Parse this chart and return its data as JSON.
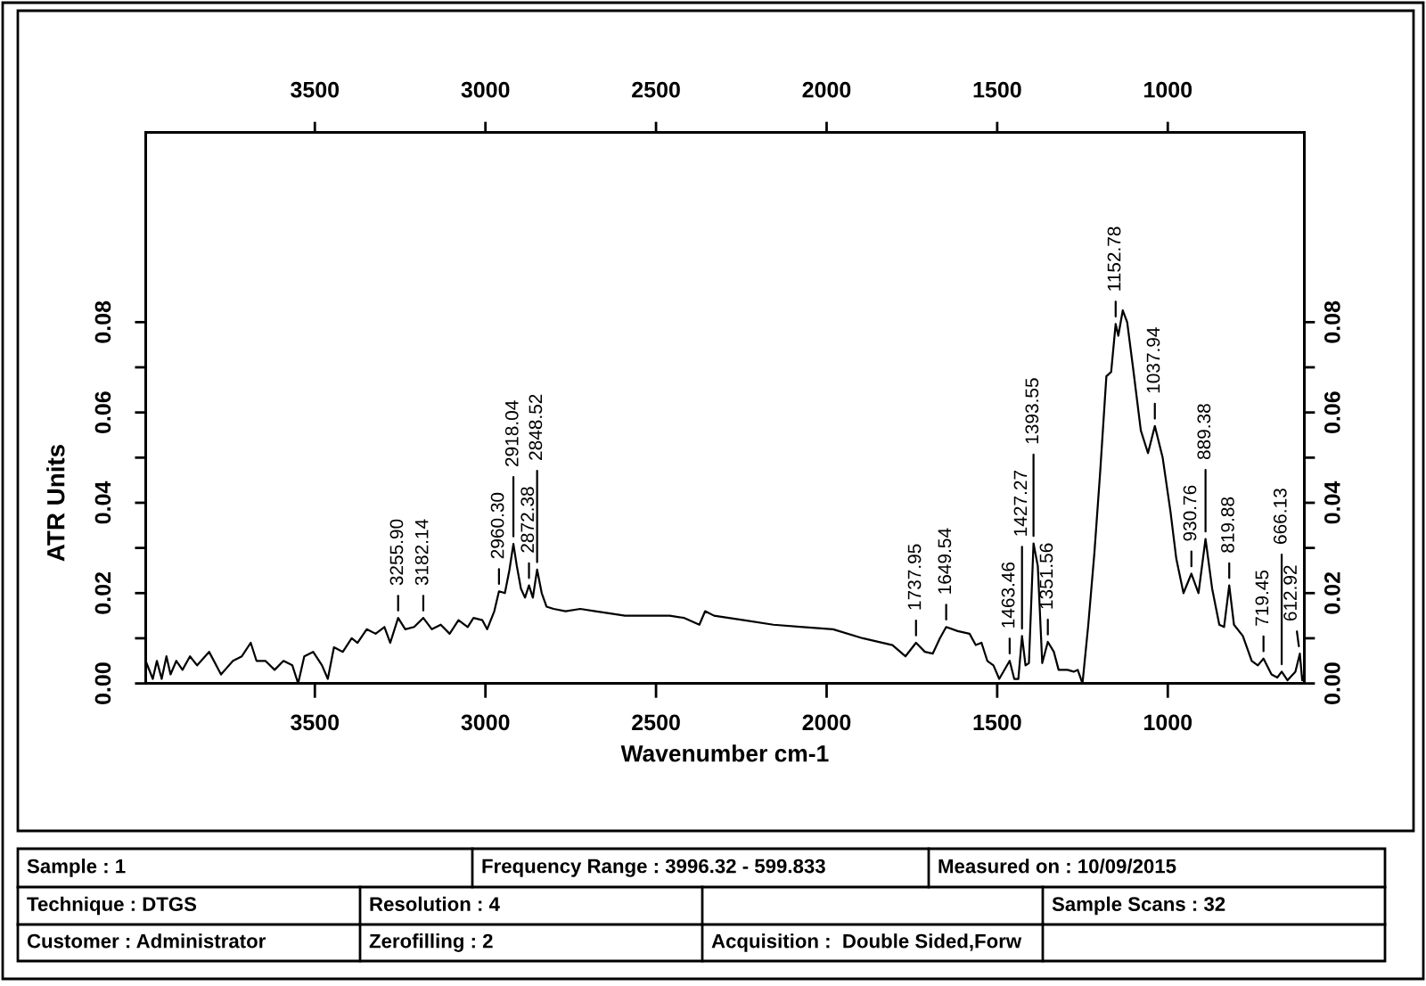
{
  "chart_data": {
    "type": "line",
    "xlabel": "Wavenumber cm-1",
    "ylabel": "ATR Units",
    "xlim": [
      3996,
      600
    ],
    "xticks": [
      3500,
      3000,
      2500,
      2000,
      1500,
      1000
    ],
    "x2lim": [
      3996,
      600
    ],
    "x2ticks": [
      3500,
      3000,
      2500,
      2000,
      1500,
      1000
    ],
    "ylim": [
      0,
      0.122
    ],
    "yticks": [
      {
        "value": 0,
        "label": "0.00"
      },
      {
        "value": 0.01,
        "label": null
      },
      0.02,
      {
        "value": 0.03,
        "label": null
      },
      0.04,
      {
        "value": 0.05,
        "label": null
      },
      0.06,
      {
        "value": 0.07,
        "label": null
      },
      0.08
    ],
    "y2lim": [
      0,
      0.122
    ],
    "y2ticks": [
      {
        "value": 0,
        "label": "0.00"
      },
      {
        "value": 0.01,
        "label": null
      },
      0.02,
      {
        "value": 0.03,
        "label": null
      },
      0.04,
      {
        "value": 0.05,
        "label": null
      },
      0.06,
      {
        "value": 0.07,
        "label": null
      },
      0.08
    ],
    "series": [
      {
        "color": "#000000",
        "x": [
          3996,
          3975,
          3963,
          3949,
          3935,
          3923,
          3906,
          3888,
          3866,
          3845,
          3810,
          3775,
          3740,
          3714,
          3688,
          3671,
          3645,
          3618,
          3592,
          3566,
          3549,
          3531,
          3505,
          3479,
          3462,
          3444,
          3418,
          3392,
          3375,
          3348,
          3322,
          3296,
          3279,
          3255.9,
          3235,
          3209,
          3182.14,
          3157,
          3131,
          3105,
          3079,
          3052,
          3035,
          3009,
          2995,
          2974,
          2960.3,
          2943,
          2930,
          2918.04,
          2908,
          2896,
          2884,
          2872.38,
          2861,
          2848.52,
          2835,
          2821,
          2800,
          2765,
          2722,
          2678,
          2634,
          2591,
          2547,
          2504,
          2460,
          2417,
          2373,
          2356,
          2330,
          2243,
          2156,
          2069,
          1981,
          1894,
          1807,
          1769,
          1737.95,
          1712,
          1689,
          1668,
          1649.54,
          1616,
          1581,
          1563,
          1546,
          1529,
          1511,
          1494,
          1463.46,
          1450,
          1438,
          1427.27,
          1417,
          1407,
          1393.55,
          1381,
          1368,
          1351.56,
          1334,
          1320,
          1294,
          1276,
          1264,
          1250,
          1233,
          1215,
          1198,
          1180,
          1166,
          1152.78,
          1145,
          1132,
          1119,
          1102,
          1079,
          1058,
          1037.94,
          1015,
          992,
          975,
          954,
          930.76,
          910,
          889.38,
          870,
          849,
          835,
          819.88,
          806,
          780,
          754,
          736,
          719.45,
          696,
          679,
          666.13,
          649,
          626,
          612.92,
          606,
          600
        ],
        "values": [
          0.005,
          0.001,
          0.005,
          0.001,
          0.006,
          0.002,
          0.005,
          0.003,
          0.006,
          0.004,
          0.007,
          0.002,
          0.005,
          0.006,
          0.009,
          0.005,
          0.005,
          0.003,
          0.005,
          0.004,
          0.0,
          0.006,
          0.007,
          0.004,
          0.001,
          0.008,
          0.007,
          0.01,
          0.009,
          0.012,
          0.011,
          0.0125,
          0.009,
          0.0145,
          0.012,
          0.0125,
          0.0145,
          0.012,
          0.013,
          0.011,
          0.014,
          0.0125,
          0.0145,
          0.014,
          0.012,
          0.016,
          0.0204,
          0.02,
          0.025,
          0.0309,
          0.026,
          0.021,
          0.019,
          0.0217,
          0.019,
          0.0252,
          0.02,
          0.017,
          0.0165,
          0.016,
          0.0165,
          0.016,
          0.0155,
          0.015,
          0.015,
          0.015,
          0.015,
          0.0145,
          0.013,
          0.016,
          0.015,
          0.014,
          0.013,
          0.0125,
          0.012,
          0.01,
          0.0085,
          0.006,
          0.009,
          0.007,
          0.0066,
          0.01,
          0.0125,
          0.0116,
          0.011,
          0.0085,
          0.009,
          0.005,
          0.004,
          0.001,
          0.005,
          0.001,
          0.001,
          0.0105,
          0.004,
          0.0045,
          0.031,
          0.026,
          0.0045,
          0.0092,
          0.007,
          0.003,
          0.003,
          0.0026,
          0.003,
          0.0,
          0.013,
          0.029,
          0.047,
          0.068,
          0.069,
          0.0796,
          0.077,
          0.0826,
          0.08,
          0.07,
          0.056,
          0.051,
          0.057,
          0.05,
          0.038,
          0.0276,
          0.02,
          0.0243,
          0.02,
          0.032,
          0.021,
          0.013,
          0.0125,
          0.0217,
          0.013,
          0.0105,
          0.005,
          0.004,
          0.0055,
          0.002,
          0.0013,
          0.0026,
          0.0007,
          0.0026,
          0.0066,
          0.0007,
          0.002
        ]
      }
    ],
    "annotations": [
      {
        "text": "3255.90",
        "x": 3255.9,
        "y": 0.0145
      },
      {
        "text": "3182.14",
        "x": 3182.14,
        "y": 0.0145
      },
      {
        "text": "2960.30",
        "x": 2960.3,
        "y": 0.0204
      },
      {
        "text": "2918.04",
        "x": 2918.04,
        "y": 0.0309
      },
      {
        "text": "2872.38",
        "x": 2872.38,
        "y": 0.0217
      },
      {
        "text": "2848.52",
        "x": 2848.52,
        "y": 0.0252
      },
      {
        "text": "1737.95",
        "x": 1737.95,
        "y": 0.009
      },
      {
        "text": "1649.54",
        "x": 1649.54,
        "y": 0.0125
      },
      {
        "text": "1463.46",
        "x": 1463.46,
        "y": 0.005
      },
      {
        "text": "1427.27",
        "x": 1427.27,
        "y": 0.0105
      },
      {
        "text": "1393.55",
        "x": 1393.55,
        "y": 0.031
      },
      {
        "text": "1351.56",
        "x": 1351.56,
        "y": 0.0092
      },
      {
        "text": "1152.78",
        "x": 1152.78,
        "y": 0.0796
      },
      {
        "text": "1037.94",
        "x": 1037.94,
        "y": 0.057
      },
      {
        "text": "930.76",
        "x": 930.76,
        "y": 0.0243
      },
      {
        "text": "889.38",
        "x": 889.38,
        "y": 0.032
      },
      {
        "text": "819.88",
        "x": 819.88,
        "y": 0.0217
      },
      {
        "text": "719.45",
        "x": 719.45,
        "y": 0.0055
      },
      {
        "text": "666.13",
        "x": 666.13,
        "y": 0.0026
      },
      {
        "text": "612.92",
        "x": 612.92,
        "y": 0.0066
      },
      "Sample : 1",
      "Frequency Range : 3996.32 - 599.833",
      "Measured on : 10/09/2015",
      "Technique : DTGS",
      "Resolution : 4",
      "Sample Scans : 32",
      "Customer : Administrator",
      "Zerofilling : 2",
      "Acquisition :  Double Sided,Forw"
    ]
  }
}
